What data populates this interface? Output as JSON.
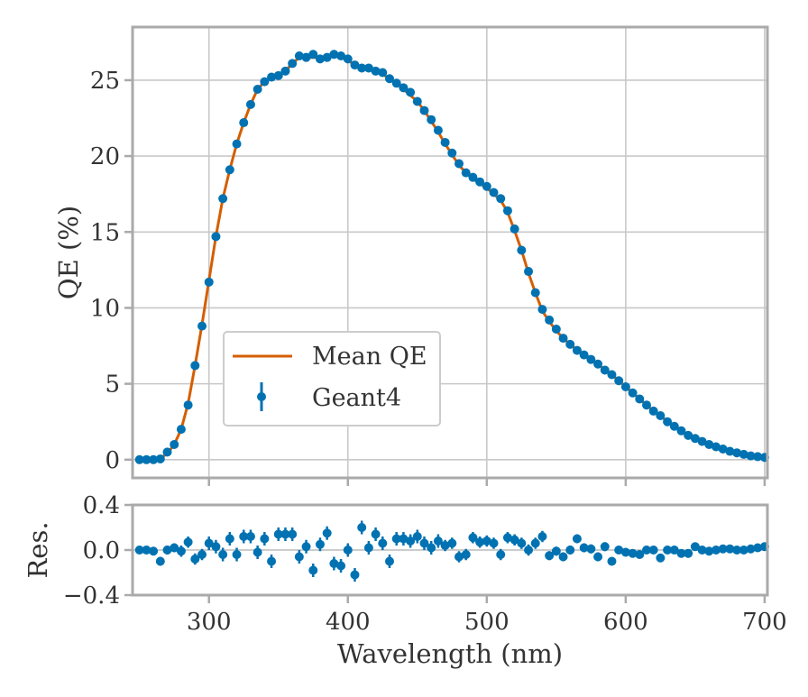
{
  "chart_data": [
    {
      "type": "line",
      "panel": "main",
      "ylabel": "QE (%)",
      "xlabel": "",
      "xlim": [
        245,
        702
      ],
      "ylim": [
        -1.2,
        28.5
      ],
      "xticks": [
        "300",
        "400",
        "500",
        "600",
        "700"
      ],
      "yticks": [
        "0",
        "5",
        "10",
        "15",
        "20",
        "25"
      ],
      "ytick_values": [
        0,
        5,
        10,
        15,
        20,
        25
      ],
      "xtick_values": [
        300,
        400,
        500,
        600,
        700
      ],
      "grid": true,
      "legend": {
        "placement": "center-left",
        "entries": [
          "Mean QE",
          "Geant4"
        ]
      },
      "series": [
        {
          "name": "Mean QE",
          "style": "line",
          "color": "#d55e00",
          "x": [
            250,
            255,
            260,
            265,
            270,
            275,
            280,
            285,
            290,
            295,
            300,
            305,
            310,
            315,
            320,
            325,
            330,
            335,
            340,
            345,
            350,
            355,
            360,
            365,
            370,
            375,
            380,
            385,
            390,
            395,
            400,
            405,
            410,
            415,
            420,
            425,
            430,
            435,
            440,
            445,
            450,
            455,
            460,
            465,
            470,
            475,
            480,
            485,
            490,
            495,
            500,
            505,
            510,
            515,
            520,
            525,
            530,
            535,
            540,
            545,
            550,
            555,
            560,
            565,
            570,
            575,
            580,
            585,
            590,
            595,
            600,
            605,
            610,
            615,
            620,
            625,
            630,
            635,
            640,
            645,
            650,
            655,
            660,
            665,
            670,
            675,
            680,
            685,
            690,
            695,
            700
          ],
          "values": [
            0,
            0,
            0,
            0.1,
            0.4,
            1.0,
            2.0,
            3.7,
            6.2,
            8.9,
            11.8,
            14.7,
            17.2,
            19.1,
            20.8,
            22.2,
            23.4,
            24.4,
            24.9,
            25.2,
            25.4,
            25.6,
            26.1,
            26.5,
            26.5,
            26.5,
            26.5,
            26.6,
            26.6,
            26.5,
            26.3,
            26.0,
            25.9,
            25.8,
            25.6,
            25.4,
            25.1,
            24.8,
            24.4,
            24.0,
            23.6,
            23.0,
            22.3,
            21.6,
            20.8,
            20.1,
            19.4,
            18.9,
            18.5,
            18.2,
            17.9,
            17.5,
            17.1,
            16.3,
            15.1,
            13.8,
            12.3,
            11.0,
            9.8,
            9.1,
            8.5,
            8.0,
            7.6,
            7.2,
            6.9,
            6.6,
            6.3,
            5.9,
            5.6,
            5.2,
            4.8,
            4.4,
            4.0,
            3.6,
            3.2,
            2.9,
            2.5,
            2.2,
            1.9,
            1.6,
            1.4,
            1.2,
            1.0,
            0.85,
            0.7,
            0.55,
            0.45,
            0.35,
            0.25,
            0.2,
            0.15
          ]
        },
        {
          "name": "Geant4",
          "style": "errorbar",
          "color": "#0072b2",
          "x": [
            250,
            255,
            260,
            265,
            270,
            275,
            280,
            285,
            290,
            295,
            300,
            305,
            310,
            315,
            320,
            325,
            330,
            335,
            340,
            345,
            350,
            355,
            360,
            365,
            370,
            375,
            380,
            385,
            390,
            395,
            400,
            405,
            410,
            415,
            420,
            425,
            430,
            435,
            440,
            445,
            450,
            455,
            460,
            465,
            470,
            475,
            480,
            485,
            490,
            495,
            500,
            505,
            510,
            515,
            520,
            525,
            530,
            535,
            540,
            545,
            550,
            555,
            560,
            565,
            570,
            575,
            580,
            585,
            590,
            595,
            600,
            605,
            610,
            615,
            620,
            625,
            630,
            635,
            640,
            645,
            650,
            655,
            660,
            665,
            670,
            675,
            680,
            685,
            690,
            695,
            700
          ],
          "values": [
            0,
            0,
            0,
            0.05,
            0.5,
            1.0,
            2.0,
            3.6,
            6.2,
            8.8,
            11.7,
            14.7,
            17.2,
            19.1,
            20.8,
            22.2,
            23.4,
            24.4,
            24.9,
            25.2,
            25.3,
            25.6,
            26.1,
            26.6,
            26.5,
            26.7,
            26.4,
            26.5,
            26.7,
            26.6,
            26.4,
            26.0,
            25.8,
            25.8,
            25.6,
            25.5,
            25.1,
            24.8,
            24.5,
            24.2,
            23.6,
            23.0,
            22.4,
            21.7,
            20.9,
            20.2,
            19.5,
            18.9,
            18.6,
            18.3,
            18.0,
            17.6,
            17.2,
            16.4,
            15.2,
            13.8,
            12.4,
            11.0,
            9.9,
            9.2,
            8.6,
            8.0,
            7.6,
            7.2,
            6.9,
            6.6,
            6.3,
            5.9,
            5.6,
            5.2,
            4.8,
            4.4,
            4.0,
            3.6,
            3.2,
            2.9,
            2.5,
            2.2,
            1.9,
            1.6,
            1.4,
            1.2,
            1.0,
            0.85,
            0.7,
            0.55,
            0.45,
            0.35,
            0.25,
            0.2,
            0.15
          ]
        }
      ]
    },
    {
      "type": "scatter",
      "panel": "residuals",
      "ylabel": "Res.",
      "xlabel": "Wavelength (nm)",
      "xlim": [
        245,
        702
      ],
      "ylim": [
        -0.4,
        0.4
      ],
      "xticks": [
        "300",
        "400",
        "500",
        "600",
        "700"
      ],
      "yticks": [
        "0.4",
        "0.0",
        "−0.4"
      ],
      "ytick_values": [
        0.4,
        0.0,
        -0.4
      ],
      "xtick_values": [
        300,
        400,
        500,
        600,
        700
      ],
      "grid": false,
      "series": [
        {
          "name": "Geant4",
          "style": "errorbar",
          "color": "#0072b2",
          "x": [
            250,
            255,
            260,
            265,
            270,
            275,
            280,
            285,
            290,
            295,
            300,
            305,
            310,
            315,
            320,
            325,
            330,
            335,
            340,
            345,
            350,
            355,
            360,
            365,
            370,
            375,
            380,
            385,
            390,
            395,
            400,
            405,
            410,
            415,
            420,
            425,
            430,
            435,
            440,
            445,
            450,
            455,
            460,
            465,
            470,
            475,
            480,
            485,
            490,
            495,
            500,
            505,
            510,
            515,
            520,
            525,
            530,
            535,
            540,
            545,
            550,
            555,
            560,
            565,
            570,
            575,
            580,
            585,
            590,
            595,
            600,
            605,
            610,
            615,
            620,
            625,
            630,
            635,
            640,
            645,
            650,
            655,
            660,
            665,
            670,
            675,
            680,
            685,
            690,
            695,
            700
          ],
          "values": [
            0.0,
            0.0,
            -0.01,
            -0.1,
            0.0,
            0.02,
            -0.01,
            0.07,
            -0.08,
            -0.04,
            0.06,
            0.03,
            -0.04,
            0.1,
            -0.04,
            0.12,
            0.12,
            -0.02,
            0.1,
            -0.1,
            0.14,
            0.14,
            0.14,
            -0.06,
            0.03,
            -0.18,
            0.05,
            0.15,
            -0.12,
            -0.14,
            0.0,
            -0.22,
            0.2,
            0.02,
            0.14,
            0.06,
            -0.1,
            0.1,
            0.1,
            0.08,
            0.12,
            0.06,
            0.02,
            0.08,
            0.04,
            0.06,
            -0.06,
            -0.04,
            0.11,
            0.07,
            0.08,
            0.06,
            -0.04,
            0.11,
            0.09,
            0.06,
            0.0,
            0.06,
            0.12,
            -0.05,
            -0.01,
            -0.06,
            0.0,
            0.1,
            0.02,
            0.01,
            -0.06,
            0.03,
            -0.1,
            0.0,
            -0.02,
            -0.03,
            -0.04,
            0.0,
            0.0,
            -0.07,
            0.0,
            0.0,
            -0.03,
            -0.03,
            0.03,
            0.0,
            -0.01,
            0.0,
            0.01,
            0.01,
            0.0,
            0.0,
            0.01,
            0.02,
            0.03
          ],
          "errors": [
            0.02,
            0.02,
            0.02,
            0.04,
            0.04,
            0.04,
            0.05,
            0.05,
            0.05,
            0.05,
            0.06,
            0.06,
            0.06,
            0.06,
            0.06,
            0.06,
            0.06,
            0.06,
            0.06,
            0.06,
            0.06,
            0.06,
            0.06,
            0.06,
            0.06,
            0.06,
            0.06,
            0.06,
            0.06,
            0.06,
            0.06,
            0.06,
            0.06,
            0.06,
            0.06,
            0.06,
            0.06,
            0.06,
            0.06,
            0.06,
            0.06,
            0.06,
            0.06,
            0.06,
            0.05,
            0.05,
            0.05,
            0.05,
            0.05,
            0.05,
            0.05,
            0.05,
            0.05,
            0.05,
            0.05,
            0.05,
            0.05,
            0.05,
            0.05,
            0.04,
            0.04,
            0.04,
            0.04,
            0.04,
            0.04,
            0.04,
            0.04,
            0.04,
            0.03,
            0.03,
            0.03,
            0.03,
            0.03,
            0.03,
            0.03,
            0.03,
            0.03,
            0.02,
            0.02,
            0.02,
            0.02,
            0.02,
            0.02,
            0.02,
            0.02,
            0.02,
            0.02,
            0.02,
            0.02,
            0.02,
            0.02
          ]
        }
      ]
    }
  ]
}
